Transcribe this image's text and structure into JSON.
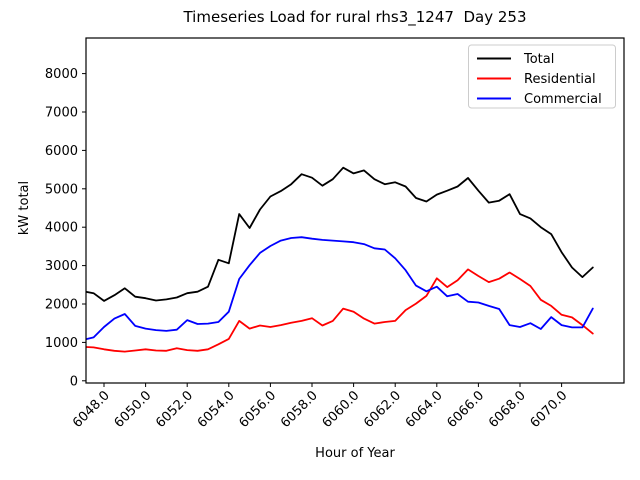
{
  "figure": {
    "title": "Timeseries Load for rural rhs3_1247  Day 253",
    "xlabel": "Hour of Year",
    "ylabel": "kW total"
  },
  "chart_data": {
    "type": "line",
    "title": "Timeseries Load for rural rhs3_1247  Day 253",
    "xlabel": "Hour of Year",
    "ylabel": "kW total",
    "grid": false,
    "legend_position": "upper right",
    "xlim": [
      6047.1,
      6073.0
    ],
    "ylim": [
      -60,
      8930
    ],
    "x_ticks": {
      "values": [
        6048,
        6050,
        6052,
        6054,
        6056,
        6058,
        6060,
        6062,
        6064,
        6066,
        6068,
        6070
      ],
      "labels": [
        "6048.0",
        "6050.0",
        "6052.0",
        "6054.0",
        "6056.0",
        "6058.0",
        "6060.0",
        "6062.0",
        "6064.0",
        "6066.0",
        "6068.0",
        "6070.0"
      ]
    },
    "y_ticks": {
      "values": [
        0,
        1000,
        2000,
        3000,
        4000,
        5000,
        6000,
        7000,
        8000
      ],
      "labels": [
        "0",
        "1000",
        "2000",
        "3000",
        "4000",
        "5000",
        "6000",
        "7000",
        "8000"
      ]
    },
    "x": [
      6047.1,
      6047.5,
      6048,
      6048.5,
      6049,
      6049.5,
      6050,
      6050.5,
      6051,
      6051.5,
      6052,
      6052.5,
      6053,
      6053.5,
      6054,
      6054.5,
      6055,
      6055.5,
      6056,
      6056.5,
      6057,
      6057.5,
      6058,
      6058.5,
      6059,
      6059.5,
      6060,
      6060.5,
      6061,
      6061.5,
      6062,
      6062.5,
      6063,
      6063.5,
      6064,
      6064.5,
      6065,
      6065.5,
      6066,
      6066.5,
      6067,
      6067.5,
      6068,
      6068.5,
      6069,
      6069.5,
      6070,
      6070.5,
      6071,
      6071.5
    ],
    "series": [
      {
        "name": "Total",
        "color": "#000000",
        "values": [
          2320,
          2280,
          2080,
          2230,
          2410,
          2190,
          2150,
          2090,
          2120,
          2170,
          2280,
          2320,
          2450,
          3150,
          3060,
          4340,
          3980,
          4460,
          4800,
          4940,
          5120,
          5380,
          5290,
          5080,
          5250,
          5550,
          5400,
          5480,
          5250,
          5120,
          5170,
          5060,
          4760,
          4670,
          4850,
          4950,
          5060,
          5280,
          4950,
          4640,
          4690,
          4860,
          4340,
          4230,
          4000,
          3820,
          3350,
          2950,
          2700,
          2950
        ]
      },
      {
        "name": "Residential",
        "color": "#ff0000",
        "values": [
          880,
          870,
          820,
          780,
          760,
          790,
          820,
          790,
          780,
          850,
          800,
          780,
          820,
          950,
          1090,
          1560,
          1360,
          1440,
          1400,
          1450,
          1510,
          1560,
          1630,
          1440,
          1560,
          1880,
          1800,
          1620,
          1490,
          1530,
          1560,
          1840,
          2010,
          2210,
          2670,
          2440,
          2620,
          2900,
          2730,
          2570,
          2660,
          2820,
          2650,
          2470,
          2110,
          1950,
          1720,
          1650,
          1450,
          1230
        ]
      },
      {
        "name": "Commercial",
        "color": "#0000ff",
        "values": [
          1080,
          1130,
          1400,
          1620,
          1740,
          1430,
          1360,
          1320,
          1300,
          1330,
          1580,
          1480,
          1490,
          1530,
          1800,
          2650,
          3010,
          3330,
          3510,
          3650,
          3720,
          3740,
          3700,
          3670,
          3650,
          3630,
          3610,
          3560,
          3450,
          3420,
          3190,
          2880,
          2480,
          2330,
          2450,
          2200,
          2260,
          2060,
          2040,
          1950,
          1870,
          1450,
          1400,
          1500,
          1350,
          1660,
          1450,
          1390,
          1390,
          1880
        ]
      }
    ]
  }
}
